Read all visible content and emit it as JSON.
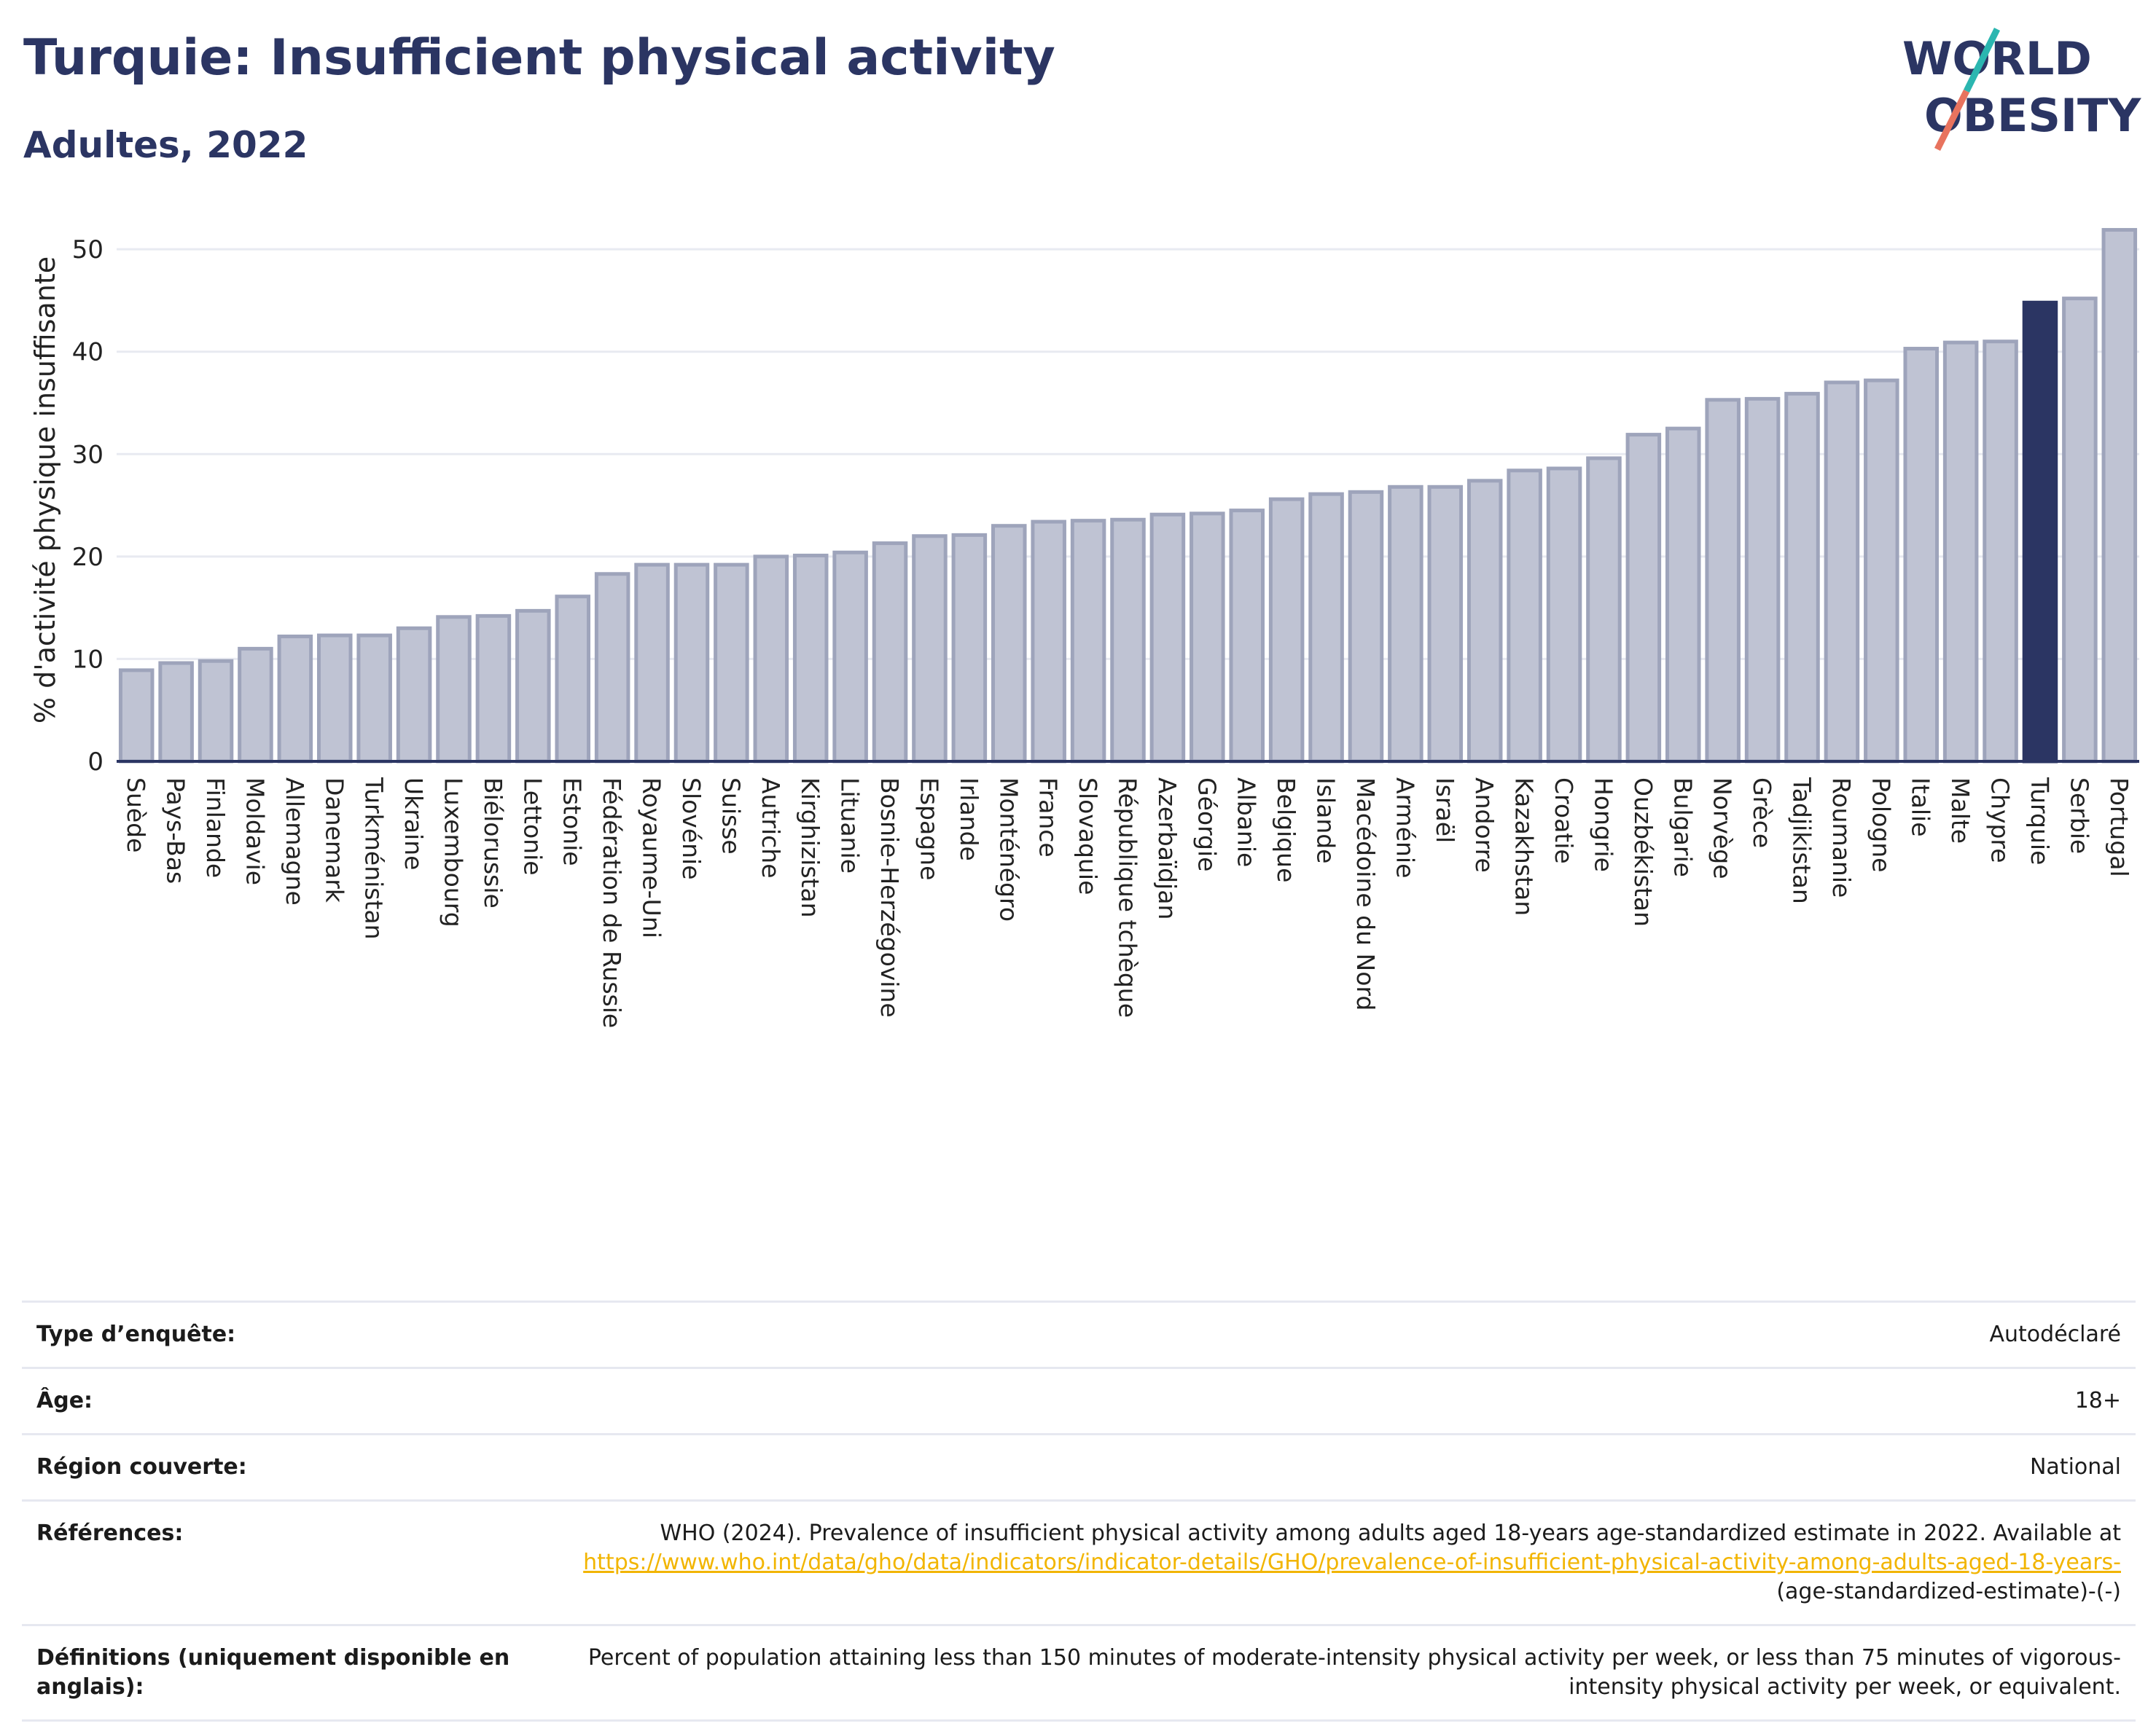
{
  "header": {
    "title": "Turquie: Insufficient physical activity",
    "subtitle": "Adultes, 2022"
  },
  "logo": {
    "line1": "WORLD",
    "line2": "OBESITY",
    "colors": {
      "text": "#2b3563",
      "slash_teal": "#2bb6b0",
      "slash_coral": "#e8735e"
    }
  },
  "colors": {
    "bar_default": "#bfc3d3",
    "bar_default_stroke": "#9ea4bb",
    "bar_highlight": "#2b3563",
    "axis": "#2b3563",
    "grid": "#e8eaf1"
  },
  "chart_data": {
    "type": "bar",
    "ylabel": "% d'activité physique insuffisante",
    "ylim": [
      0,
      53
    ],
    "yticks": [
      0,
      10,
      20,
      30,
      40,
      50
    ],
    "grid": true,
    "highlight": "Turquie",
    "categories": [
      "Suède",
      "Pays-Bas",
      "Finlande",
      "Moldavie",
      "Allemagne",
      "Danemark",
      "Turkménistan",
      "Ukraine",
      "Luxembourg",
      "Biélorussie",
      "Lettonie",
      "Estonie",
      "Fédération de Russie",
      "Royaume-Uni",
      "Slovénie",
      "Suisse",
      "Autriche",
      "Kirghizistan",
      "Lituanie",
      "Bosnie-Herzégovine",
      "Espagne",
      "Irlande",
      "Monténégro",
      "France",
      "Slovaquie",
      "République tchèque",
      "Azerbaïdjan",
      "Géorgie",
      "Albanie",
      "Belgique",
      "Islande",
      "Macédoine du Nord",
      "Arménie",
      "Israël",
      "Andorre",
      "Kazakhstan",
      "Croatie",
      "Hongrie",
      "Ouzbékistan",
      "Bulgarie",
      "Norvège",
      "Grèce",
      "Tadjikistan",
      "Roumanie",
      "Pologne",
      "Italie",
      "Malte",
      "Chypre",
      "Turquie",
      "Serbie",
      "Portugal"
    ],
    "values": [
      8.9,
      9.6,
      9.8,
      11.0,
      12.2,
      12.3,
      12.3,
      13.0,
      14.1,
      14.2,
      14.7,
      16.1,
      18.3,
      19.2,
      19.2,
      19.2,
      20.0,
      20.1,
      20.4,
      21.3,
      22.0,
      22.1,
      23.0,
      23.4,
      23.5,
      23.6,
      24.1,
      24.2,
      24.5,
      25.6,
      26.1,
      26.3,
      26.8,
      26.8,
      27.4,
      28.4,
      28.6,
      29.6,
      31.9,
      32.5,
      35.3,
      35.4,
      35.9,
      37.0,
      37.2,
      40.3,
      40.9,
      41.0,
      44.8,
      45.2,
      51.9
    ]
  },
  "info": {
    "survey_type": {
      "label": "Type d’enquête:",
      "value": "Autodéclaré"
    },
    "age": {
      "label": "Âge:",
      "value": "18+"
    },
    "region": {
      "label": "Région couverte:",
      "value": "National"
    },
    "references": {
      "label": "Références:",
      "text": "WHO (2024). Prevalence of insufficient physical activity among adults aged 18-years age-standardized estimate in 2022. Available at",
      "link": "https://www.who.int/data/gho/data/indicators/indicator-details/GHO/prevalence-of-insufficient-physical-activity-among-adults-aged-18-years-",
      "tail": "(age-standardized-estimate)-(-)"
    },
    "definitions": {
      "label": "Définitions (uniquement disponible en anglais):",
      "value": "Percent of population attaining less than 150 minutes of moderate-intensity physical activity per week, or less than 75 minutes of vigorous-intensity physical activity per week, or equivalent."
    }
  }
}
